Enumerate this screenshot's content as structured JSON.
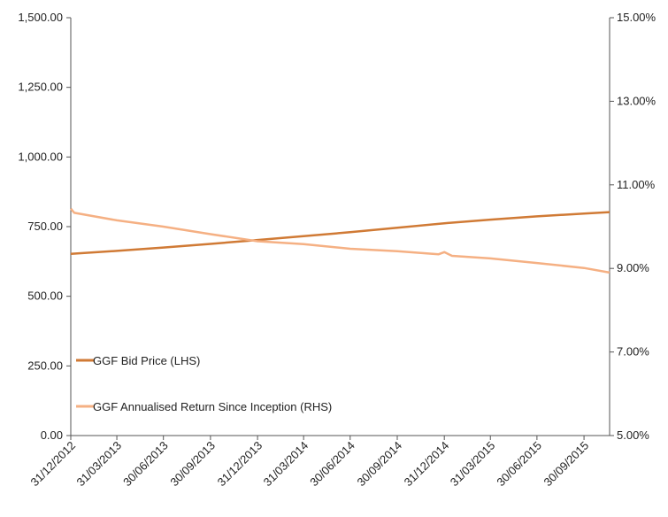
{
  "chart_data": {
    "type": "line",
    "x_tick_labels": [
      "31/12/2012",
      "31/03/2013",
      "30/06/2013",
      "30/09/2013",
      "31/12/2013",
      "31/03/2014",
      "30/06/2014",
      "30/09/2014",
      "31/12/2014",
      "31/03/2015",
      "30/06/2015",
      "30/09/2015"
    ],
    "x_range": [
      "31/12/2012",
      "19/11/2015"
    ],
    "y_left": {
      "range": [
        0,
        1500
      ],
      "ticks": [
        0,
        250,
        500,
        750,
        1000,
        1250,
        1500
      ],
      "tick_labels": [
        "0.00",
        "250.00",
        "500.00",
        "750.00",
        "1,000.00",
        "1,250.00",
        "1,500.00"
      ]
    },
    "y_right": {
      "range": [
        5,
        15
      ],
      "ticks": [
        5,
        7,
        9,
        11,
        13,
        15
      ],
      "tick_labels": [
        "5.00%",
        "7.00%",
        "9.00%",
        "11.00%",
        "13.00%",
        "15.00%"
      ]
    },
    "grid": false,
    "legend_position": "bottom-left",
    "series": [
      {
        "name": "GGF Bid Price (LHS)",
        "axis": "left",
        "color": "#d07a35",
        "points": [
          [
            "31/12/2012",
            652
          ],
          [
            "31/03/2013",
            663
          ],
          [
            "30/06/2013",
            675
          ],
          [
            "30/09/2013",
            688
          ],
          [
            "31/12/2013",
            702
          ],
          [
            "31/03/2014",
            716
          ],
          [
            "30/06/2014",
            730
          ],
          [
            "30/09/2014",
            746
          ],
          [
            "31/12/2014",
            762
          ],
          [
            "31/03/2015",
            775
          ],
          [
            "30/06/2015",
            787
          ],
          [
            "30/09/2015",
            797
          ],
          [
            "19/11/2015",
            802
          ]
        ]
      },
      {
        "name": "GGF Annualised Return Since Inception (RHS)",
        "axis": "right",
        "color": "#f5b083",
        "points": [
          [
            "31/12/2012",
            10.43
          ],
          [
            "07/01/2013",
            10.33
          ],
          [
            "31/03/2013",
            10.15
          ],
          [
            "30/06/2013",
            10.0
          ],
          [
            "30/09/2013",
            9.82
          ],
          [
            "31/12/2013",
            9.65
          ],
          [
            "31/03/2014",
            9.58
          ],
          [
            "30/06/2014",
            9.47
          ],
          [
            "30/09/2014",
            9.41
          ],
          [
            "20/12/2014",
            9.34
          ],
          [
            "31/12/2014",
            9.39
          ],
          [
            "15/01/2015",
            9.3
          ],
          [
            "31/03/2015",
            9.24
          ],
          [
            "30/06/2015",
            9.13
          ],
          [
            "30/09/2015",
            9.01
          ],
          [
            "19/11/2015",
            8.9
          ]
        ]
      }
    ]
  }
}
